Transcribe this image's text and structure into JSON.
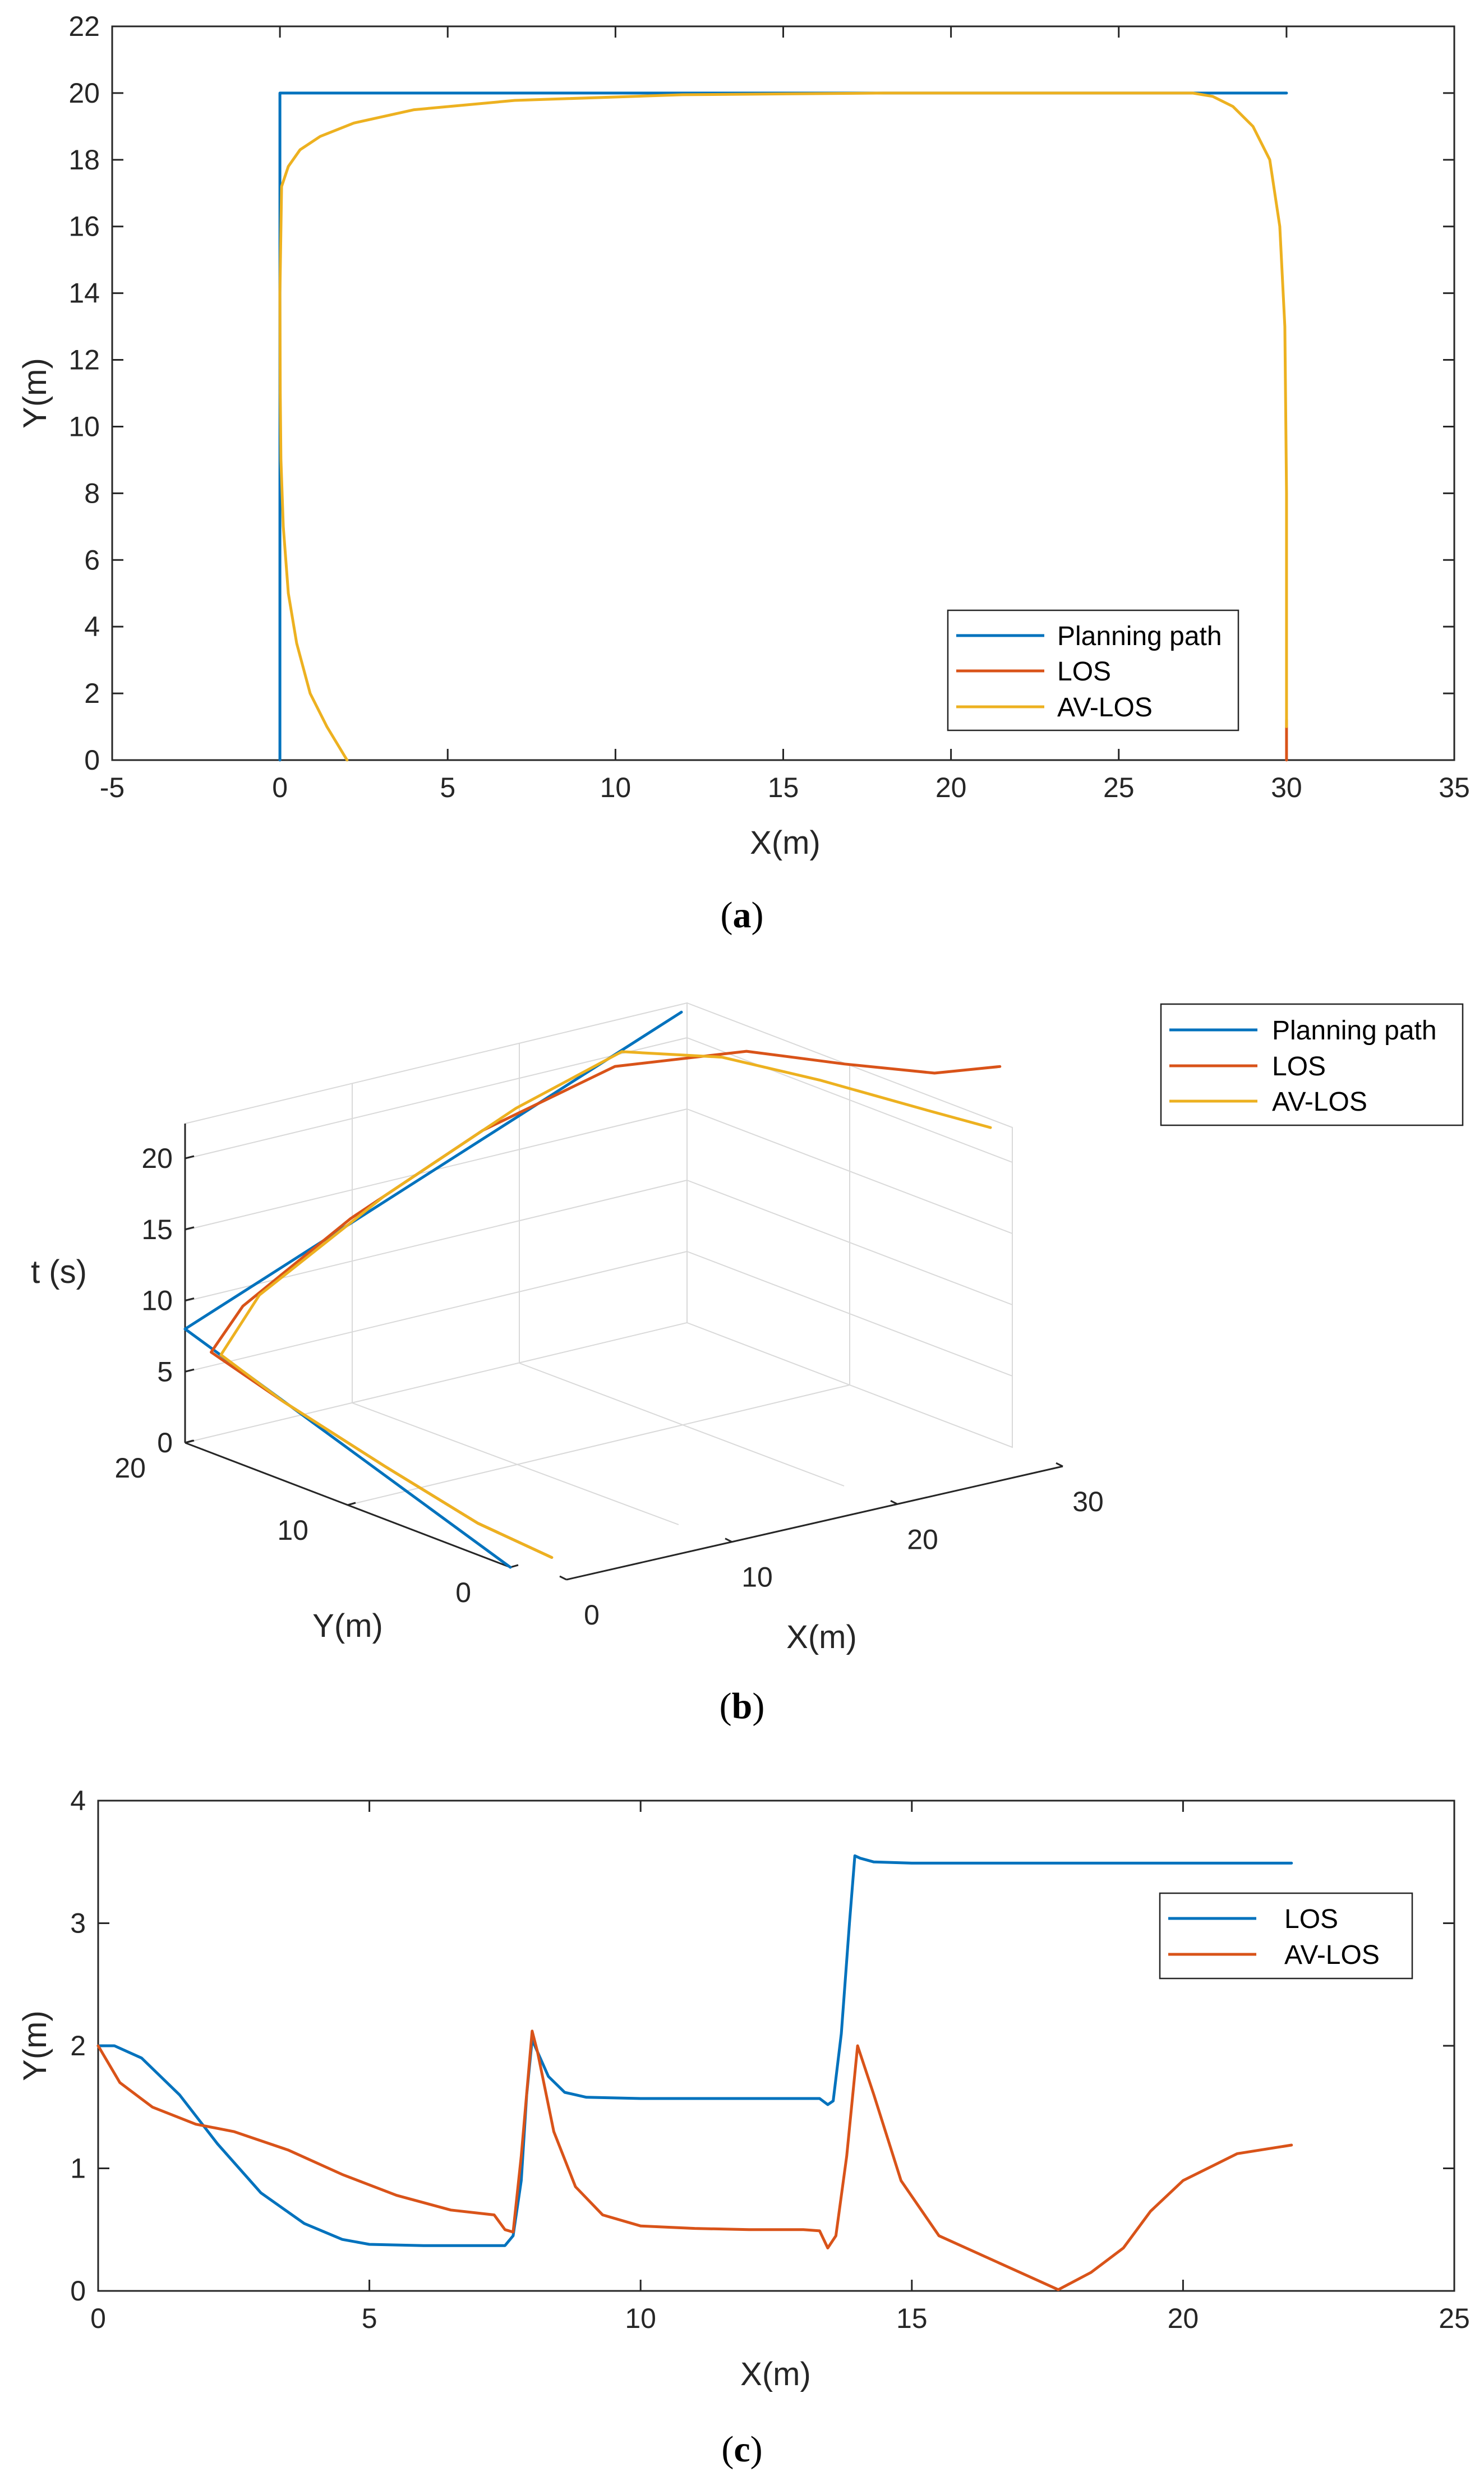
{
  "chart_data": [
    {
      "panel": "a",
      "type": "line",
      "caption_letter": "a",
      "xlabel": "X(m)",
      "ylabel": "Y(m)",
      "xlim": [
        -5,
        35
      ],
      "ylim": [
        0,
        22
      ],
      "xticks": [
        -5,
        0,
        5,
        10,
        15,
        20,
        25,
        30,
        35
      ],
      "yticks": [
        0,
        2,
        4,
        6,
        8,
        10,
        12,
        14,
        16,
        18,
        20,
        22
      ],
      "legend": [
        "Planning path",
        "LOS",
        "AV-LOS"
      ],
      "legend_position": "bottom-right",
      "colors": {
        "planning": "#0072BD",
        "los": "#D95319",
        "avlos": "#EDB120"
      },
      "series": [
        {
          "name": "Planning path",
          "x": [
            0,
            0,
            30
          ],
          "y": [
            0,
            20,
            20
          ]
        },
        {
          "name": "LOS",
          "x": [
            30,
            30
          ],
          "y": [
            0,
            1.2
          ]
        },
        {
          "name": "AV-LOS",
          "x": [
            2,
            1.4,
            0.9,
            0.5,
            0.25,
            0.1,
            0.03,
            0.01,
            0,
            0.05,
            0.25,
            0.6,
            1.2,
            2.2,
            4,
            7,
            12,
            18,
            24,
            27.2,
            27.8,
            28.4,
            29,
            29.5,
            29.8,
            29.95,
            30,
            30
          ],
          "y": [
            0,
            1,
            2,
            3.5,
            5,
            7,
            9,
            11,
            14,
            17.2,
            17.8,
            18.3,
            18.7,
            19.1,
            19.5,
            19.78,
            19.95,
            20,
            20,
            20,
            19.9,
            19.6,
            19,
            18,
            16,
            13,
            8,
            1
          ]
        }
      ]
    },
    {
      "panel": "b",
      "type": "line",
      "caption_letter": "b",
      "xlabel": "X(m)",
      "ylabel": "Y(m)",
      "zlabel": "t (s)",
      "xticks": [
        0,
        10,
        20,
        30
      ],
      "yticks": [
        0,
        10,
        20
      ],
      "zticks": [
        0,
        5,
        10,
        15,
        20
      ],
      "legend": [
        "Planning path",
        "LOS",
        "AV-LOS"
      ],
      "legend_position": "top-right",
      "colors": {
        "planning": "#0072BD",
        "los": "#D95319",
        "avlos": "#EDB120"
      },
      "series": [
        {
          "name": "Planning path",
          "x": [
            0,
            0,
            30
          ],
          "y": [
            0,
            20,
            20
          ],
          "t": [
            0,
            8,
            22
          ]
        },
        {
          "name": "LOS",
          "x": [
            2.5,
            1,
            0.3,
            0.05,
            0.1,
            3,
            10,
            18,
            25,
            30,
            32,
            33.5,
            34.5
          ],
          "y": [
            0,
            3,
            8,
            14,
            18.5,
            19.5,
            20,
            20,
            19,
            16,
            12,
            8,
            5
          ],
          "t": [
            0,
            1.5,
            3.5,
            5.5,
            7,
            9,
            13,
            17,
            20,
            21,
            21.3,
            22,
            23.5
          ]
        },
        {
          "name": "AV-LOS",
          "x": [
            2.5,
            1,
            0.3,
            0.05,
            0.2,
            4,
            12,
            20,
            26,
            28.5,
            29.5,
            30,
            30
          ],
          "y": [
            0,
            3,
            8,
            14,
            18,
            19.5,
            20,
            20,
            19.6,
            16,
            11,
            5,
            1
          ],
          "t": [
            0,
            1.5,
            3.5,
            5.5,
            7,
            9.5,
            14,
            18,
            20.5,
            21,
            21.3,
            21.7,
            22.2
          ]
        }
      ]
    },
    {
      "panel": "c",
      "type": "line",
      "caption_letter": "c",
      "xlabel": "X(m)",
      "ylabel": "Y(m)",
      "xlim": [
        0,
        25
      ],
      "ylim": [
        0,
        4
      ],
      "xticks": [
        0,
        5,
        10,
        15,
        20,
        25
      ],
      "yticks": [
        0,
        1,
        2,
        3,
        4
      ],
      "legend": [
        "LOS",
        "AV-LOS"
      ],
      "legend_position": "top-right",
      "colors": {
        "los": "#0072BD",
        "avlos": "#D95319"
      },
      "series": [
        {
          "name": "LOS",
          "x": [
            0,
            0.3,
            0.8,
            1.5,
            2.2,
            3,
            3.8,
            4.5,
            5,
            6,
            7,
            7.5,
            7.65,
            7.8,
            7.9,
            8.0,
            8.1,
            8.3,
            8.6,
            9,
            10,
            11,
            12,
            13,
            13.3,
            13.45,
            13.55,
            13.7,
            13.85,
            13.95,
            14.05,
            14.3,
            15,
            17,
            19,
            21,
            22
          ],
          "y": [
            2,
            2,
            1.9,
            1.6,
            1.2,
            0.8,
            0.55,
            0.42,
            0.38,
            0.37,
            0.37,
            0.37,
            0.45,
            0.9,
            1.6,
            2.05,
            1.95,
            1.75,
            1.62,
            1.58,
            1.57,
            1.57,
            1.57,
            1.57,
            1.57,
            1.52,
            1.55,
            2.1,
            3.0,
            3.55,
            3.53,
            3.5,
            3.49,
            3.49,
            3.49,
            3.49,
            3.49
          ]
        },
        {
          "name": "AV-LOS",
          "x": [
            0,
            0.4,
            1,
            1.8,
            2.5,
            3.5,
            4.5,
            5.5,
            6.5,
            7.3,
            7.5,
            7.65,
            7.8,
            8.0,
            8.1,
            8.4,
            8.8,
            9.3,
            10,
            11,
            12,
            13,
            13.3,
            13.45,
            13.6,
            13.8,
            14.0,
            14.3,
            14.8,
            15.5,
            16.5,
            17.7,
            18.3,
            18.9,
            19.4,
            20,
            21,
            22
          ],
          "y": [
            2,
            1.7,
            1.5,
            1.36,
            1.3,
            1.15,
            0.95,
            0.78,
            0.66,
            0.62,
            0.5,
            0.48,
            1.1,
            2.12,
            1.95,
            1.3,
            0.85,
            0.62,
            0.53,
            0.51,
            0.5,
            0.5,
            0.49,
            0.35,
            0.45,
            1.1,
            2.0,
            1.6,
            0.9,
            0.45,
            0.25,
            0.01,
            0.15,
            0.35,
            0.65,
            0.9,
            1.12,
            1.19
          ]
        }
      ]
    }
  ]
}
